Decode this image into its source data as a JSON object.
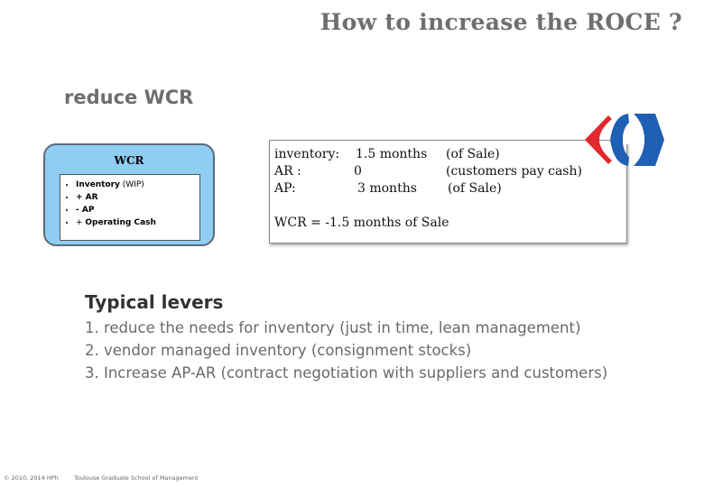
{
  "title": "How to increase the ROCE ?",
  "subtitle": "reduce  WCR",
  "wcr_box": {
    "title": "WCR",
    "items": [
      {
        "bold": "Inventory",
        "normal": " (WIP)"
      },
      {
        "bold": "+ AR"
      },
      {
        "bold": "-  AP"
      },
      {
        "normal": "+ ",
        "bold": "Operating Cash"
      }
    ]
  },
  "info": {
    "inventory": {
      "label": "inventory:",
      "value": "1.5 months",
      "note": "(of Sale)"
    },
    "ar": {
      "label": "AR :",
      "value": "0",
      "note": "(customers pay cash)"
    },
    "ap": {
      "label": "AP:",
      "value": "3 months",
      "note": "(of Sale)"
    },
    "wcr": "WCR = -1.5 months of Sale"
  },
  "levers": {
    "title": "Typical levers",
    "items": [
      "1. reduce the needs for inventory (just in time, lean management)",
      "2. vendor managed inventory (consignment stocks)",
      "3. Increase AP-AR (contract negotiation with suppliers and customers)"
    ]
  },
  "footer": {
    "copyright": "© 2010, 2014 HPh",
    "school": "Toulouse Graduate School of Management"
  },
  "colors": {
    "logo_red": "#e1292e",
    "logo_blue": "#1f5fb4",
    "wcr_fill": "#8fcdf3"
  }
}
